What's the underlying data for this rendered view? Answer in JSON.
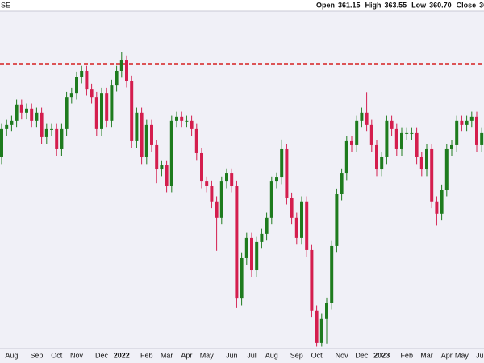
{
  "chart_data": {
    "type": "candlestick",
    "symbol": "SE",
    "ohlc_header": [
      {
        "label": "Open",
        "value": "361.15"
      },
      {
        "label": "High",
        "value": "363.55"
      },
      {
        "label": "Low",
        "value": "360.70"
      },
      {
        "label": "Close",
        "value": "36"
      }
    ],
    "up_color": "#1e7b1e",
    "down_color": "#d41e4e",
    "hlines": [
      {
        "value": 369.45,
        "color": "#d62020",
        "style": "dashed"
      }
    ],
    "ylim": [
      285,
      385
    ],
    "grid": false,
    "categories": [
      null,
      null,
      "Aug",
      null,
      null,
      null,
      null,
      "Sep",
      null,
      null,
      null,
      "Oct",
      null,
      null,
      null,
      "Nov",
      null,
      null,
      null,
      null,
      "Dec",
      null,
      null,
      null,
      "2022",
      null,
      null,
      null,
      null,
      "Feb",
      null,
      null,
      null,
      "Mar",
      null,
      null,
      null,
      "Apr",
      null,
      null,
      null,
      "May",
      null,
      null,
      null,
      null,
      "Jun",
      null,
      null,
      null,
      "Jul",
      null,
      null,
      null,
      "Aug",
      null,
      null,
      null,
      null,
      "Sep",
      null,
      null,
      null,
      "Oct",
      null,
      null,
      null,
      null,
      "Nov",
      null,
      null,
      null,
      "Dec",
      null,
      null,
      null,
      "2023",
      null,
      null,
      null,
      null,
      "Feb",
      null,
      null,
      null,
      "Mar",
      null,
      null,
      null,
      "Apr",
      null,
      null,
      "May",
      null,
      null,
      null,
      "Jun",
      null,
      null
    ],
    "open": [
      341.7,
      350.1,
      351.3,
      352.5,
      357.3,
      354.9,
      356.1,
      352.5,
      354.9,
      347.7,
      350.1,
      350.1,
      344.1,
      350.1,
      359.6,
      360.8,
      365.6,
      367.3,
      362.0,
      359.6,
      350.1,
      360.8,
      352.5,
      363.2,
      367.3,
      370.4,
      364.4,
      346.5,
      354.9,
      341.7,
      351.3,
      345.3,
      338.1,
      339.3,
      333.3,
      352.5,
      353.7,
      352.5,
      352.5,
      350.1,
      342.9,
      334.5,
      333.3,
      328.6,
      323.8,
      334.5,
      336.9,
      333.3,
      299.8,
      311.8,
      317.8,
      308.2,
      316.6,
      319.0,
      323.8,
      334.5,
      335.7,
      344.1,
      329.7,
      323.8,
      317.8,
      328.6,
      314.2,
      296.3,
      286.7,
      293.9,
      298.6,
      315.4,
      330.9,
      336.9,
      346.5,
      345.3,
      352.5,
      354.9,
      351.3,
      345.3,
      338.1,
      341.7,
      352.5,
      350.1,
      344.1,
      348.9,
      348.9,
      348.9,
      341.7,
      338.1,
      344.1,
      328.6,
      325.0,
      332.1,
      344.1,
      345.3,
      352.5,
      351.3,
      352.5,
      353.7,
      345.3,
      348.9,
      342.9
    ],
    "high": [
      351.6,
      352.8,
      354.0,
      358.8,
      358.8,
      357.6,
      357.6,
      356.4,
      356.4,
      351.6,
      351.6,
      351.6,
      351.6,
      361.1,
      362.3,
      367.1,
      368.8,
      368.8,
      363.5,
      361.1,
      362.3,
      362.3,
      364.7,
      368.8,
      373.0,
      371.9,
      365.9,
      356.4,
      356.4,
      352.8,
      352.8,
      346.8,
      340.8,
      340.8,
      354.0,
      355.2,
      355.2,
      354.0,
      354.0,
      351.6,
      344.4,
      336.0,
      334.8,
      330.1,
      336.0,
      338.4,
      338.4,
      334.8,
      313.3,
      319.3,
      319.3,
      318.1,
      320.5,
      325.3,
      336.0,
      337.2,
      347.0,
      345.6,
      331.2,
      325.3,
      330.1,
      330.1,
      315.7,
      297.8,
      295.4,
      300.1,
      316.9,
      332.4,
      338.4,
      348.0,
      348.0,
      354.0,
      356.4,
      361.0,
      352.8,
      346.8,
      343.2,
      354.0,
      354.0,
      351.6,
      350.4,
      350.4,
      350.4,
      350.4,
      343.2,
      345.6,
      345.6,
      330.1,
      333.6,
      345.6,
      346.8,
      354.0,
      354.0,
      354.0,
      355.2,
      355.2,
      350.4,
      350.4,
      352.1
    ],
    "low": [
      339.7,
      348.1,
      349.3,
      350.5,
      352.9,
      352.9,
      350.5,
      350.5,
      345.7,
      345.7,
      348.1,
      342.1,
      342.1,
      348.1,
      357.6,
      358.8,
      363.6,
      360.0,
      357.6,
      348.1,
      348.1,
      350.5,
      350.5,
      361.2,
      365.3,
      362.4,
      344.5,
      344.5,
      339.7,
      339.7,
      343.3,
      334.0,
      336.1,
      331.3,
      331.3,
      350.5,
      350.5,
      350.5,
      348.1,
      340.9,
      332.5,
      331.3,
      326.6,
      314.0,
      321.8,
      332.5,
      331.3,
      297.0,
      297.8,
      309.8,
      306.2,
      306.2,
      314.6,
      317.0,
      321.8,
      332.5,
      333.7,
      327.7,
      321.8,
      315.8,
      315.8,
      312.2,
      294.3,
      285.6,
      285.6,
      286.5,
      296.6,
      313.4,
      328.9,
      334.9,
      343.3,
      343.3,
      350.5,
      349.3,
      343.3,
      336.1,
      336.1,
      339.7,
      348.1,
      342.1,
      342.1,
      346.9,
      346.9,
      339.7,
      336.1,
      336.1,
      326.6,
      321.5,
      323.0,
      330.1,
      342.1,
      343.3,
      349.3,
      349.3,
      350.5,
      343.3,
      343.3,
      340.9,
      340.9
    ],
    "close": [
      350.1,
      351.3,
      352.5,
      357.3,
      354.9,
      356.1,
      352.5,
      354.9,
      347.7,
      350.1,
      350.1,
      344.1,
      350.1,
      359.6,
      360.8,
      365.6,
      367.3,
      362.0,
      359.6,
      350.1,
      360.8,
      352.5,
      363.2,
      367.3,
      370.4,
      364.4,
      346.5,
      354.9,
      341.7,
      351.3,
      345.3,
      338.1,
      339.3,
      333.3,
      352.5,
      353.7,
      352.5,
      352.5,
      350.1,
      342.9,
      334.5,
      333.3,
      328.6,
      323.8,
      334.5,
      336.9,
      333.3,
      299.8,
      311.8,
      317.8,
      308.2,
      316.6,
      319.0,
      323.8,
      334.5,
      335.7,
      344.1,
      329.7,
      323.8,
      317.8,
      328.6,
      314.2,
      296.3,
      286.7,
      293.9,
      298.6,
      315.4,
      330.9,
      336.9,
      346.5,
      345.3,
      352.5,
      354.9,
      351.3,
      345.3,
      338.1,
      341.7,
      352.5,
      350.1,
      344.1,
      348.9,
      348.9,
      348.9,
      341.7,
      338.1,
      344.1,
      328.6,
      325.0,
      332.1,
      344.1,
      345.3,
      352.5,
      351.3,
      352.5,
      353.7,
      345.3,
      348.9,
      342.9,
      350.6
    ]
  }
}
